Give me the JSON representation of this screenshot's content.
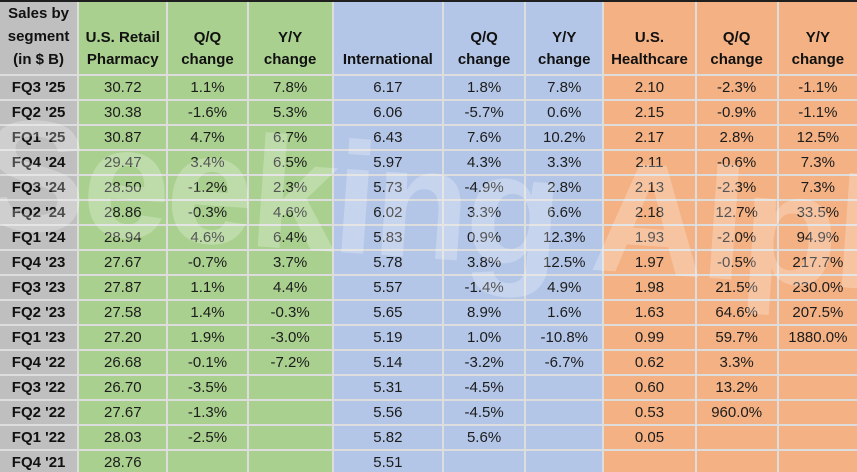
{
  "watermark": {
    "text": "Seeking Alpha",
    "alpha": "α"
  },
  "colors": {
    "row_label_gray": "#BFBFBF",
    "pharmacy_green": "#A9D08E",
    "international_blue": "#B4C6E7",
    "healthcare_orange": "#F4B183",
    "gridline": "#DDDDDD",
    "top_border": "#1F1F1F"
  },
  "header": {
    "corner": [
      "Sales by",
      "segment",
      "(in $ B)"
    ],
    "pharmacy": "U.S. Retail Pharmacy",
    "international": "International",
    "healthcare": "U.S. Healthcare",
    "qq": "Q/Q change",
    "yy": "Y/Y change"
  },
  "chart_data": {
    "type": "table",
    "title": "Sales by segment (in $ B)",
    "column_groups": [
      "U.S. Retail Pharmacy",
      "International",
      "U.S. Healthcare"
    ],
    "columns": [
      "Sales by segment (in $ B)",
      "U.S. Retail Pharmacy",
      "Q/Q change",
      "Y/Y change",
      "International",
      "Q/Q change",
      "Y/Y change",
      "U.S. Healthcare",
      "Q/Q change",
      "Y/Y change"
    ],
    "rows": [
      {
        "label": "FQ3 '25",
        "values": [
          "30.72",
          "1.1%",
          "7.8%",
          "6.17",
          "1.8%",
          "7.8%",
          "2.10",
          "-2.3%",
          "-1.1%"
        ]
      },
      {
        "label": "FQ2 '25",
        "values": [
          "30.38",
          "-1.6%",
          "5.3%",
          "6.06",
          "-5.7%",
          "0.6%",
          "2.15",
          "-0.9%",
          "-1.1%"
        ]
      },
      {
        "label": "FQ1 '25",
        "values": [
          "30.87",
          "4.7%",
          "6.7%",
          "6.43",
          "7.6%",
          "10.2%",
          "2.17",
          "2.8%",
          "12.5%"
        ]
      },
      {
        "label": "FQ4 '24",
        "values": [
          "29.47",
          "3.4%",
          "6.5%",
          "5.97",
          "4.3%",
          "3.3%",
          "2.11",
          "-0.6%",
          "7.3%"
        ]
      },
      {
        "label": "FQ3 '24",
        "values": [
          "28.50",
          "-1.2%",
          "2.3%",
          "5.73",
          "-4.9%",
          "2.8%",
          "2.13",
          "-2.3%",
          "7.3%"
        ]
      },
      {
        "label": "FQ2 '24",
        "values": [
          "28.86",
          "-0.3%",
          "4.6%",
          "6.02",
          "3.3%",
          "6.6%",
          "2.18",
          "12.7%",
          "33.5%"
        ]
      },
      {
        "label": "FQ1 '24",
        "values": [
          "28.94",
          "4.6%",
          "6.4%",
          "5.83",
          "0.9%",
          "12.3%",
          "1.93",
          "-2.0%",
          "94.9%"
        ]
      },
      {
        "label": "FQ4 '23",
        "values": [
          "27.67",
          "-0.7%",
          "3.7%",
          "5.78",
          "3.8%",
          "12.5%",
          "1.97",
          "-0.5%",
          "217.7%"
        ]
      },
      {
        "label": "FQ3 '23",
        "values": [
          "27.87",
          "1.1%",
          "4.4%",
          "5.57",
          "-1.4%",
          "4.9%",
          "1.98",
          "21.5%",
          "230.0%"
        ]
      },
      {
        "label": "FQ2 '23",
        "values": [
          "27.58",
          "1.4%",
          "-0.3%",
          "5.65",
          "8.9%",
          "1.6%",
          "1.63",
          "64.6%",
          "207.5%"
        ]
      },
      {
        "label": "FQ1 '23",
        "values": [
          "27.20",
          "1.9%",
          "-3.0%",
          "5.19",
          "1.0%",
          "-10.8%",
          "0.99",
          "59.7%",
          "1880.0%"
        ]
      },
      {
        "label": "FQ4 '22",
        "values": [
          "26.68",
          "-0.1%",
          "-7.2%",
          "5.14",
          "-3.2%",
          "-6.7%",
          "0.62",
          "3.3%",
          ""
        ]
      },
      {
        "label": "FQ3 '22",
        "values": [
          "26.70",
          "-3.5%",
          "",
          "5.31",
          "-4.5%",
          "",
          "0.60",
          "13.2%",
          ""
        ]
      },
      {
        "label": "FQ2 '22",
        "values": [
          "27.67",
          "-1.3%",
          "",
          "5.56",
          "-4.5%",
          "",
          "0.53",
          "960.0%",
          ""
        ]
      },
      {
        "label": "FQ1 '22",
        "values": [
          "28.03",
          "-2.5%",
          "",
          "5.82",
          "5.6%",
          "",
          "0.05",
          "",
          ""
        ]
      },
      {
        "label": "FQ4 '21",
        "values": [
          "28.76",
          "",
          "",
          "5.51",
          "",
          "",
          "",
          "",
          ""
        ]
      }
    ]
  }
}
